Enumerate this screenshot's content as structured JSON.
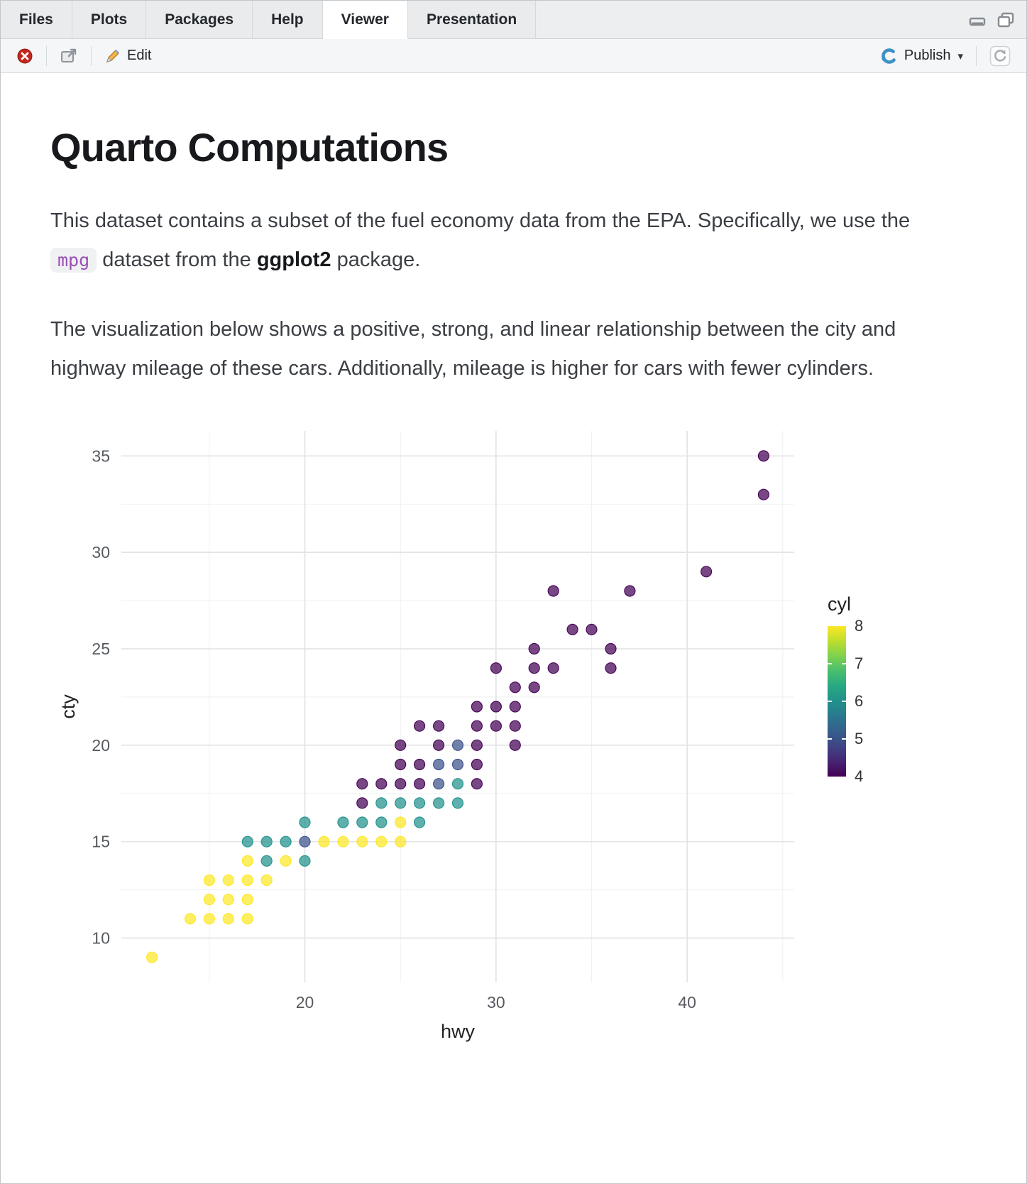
{
  "tabs": {
    "items": [
      "Files",
      "Plots",
      "Packages",
      "Help",
      "Viewer",
      "Presentation"
    ],
    "active": "Viewer",
    "active_index": 4
  },
  "toolbar": {
    "edit_label": "Edit",
    "publish_label": "Publish",
    "publish_caret": "▾"
  },
  "document": {
    "title": "Quarto Computations",
    "para1_pre": "This dataset contains a subset of the fuel economy data from the EPA. Specifically, we use the ",
    "para1_code": "mpg",
    "para1_mid": " dataset from the ",
    "para1_bold": "ggplot2",
    "para1_post": " package.",
    "para2": "The visualization below shows a positive, strong, and linear relationship between the city and highway mileage of these cars. Additionally, mileage is higher for cars with fewer cylinders."
  },
  "chart_data": {
    "type": "scatter",
    "xlabel": "hwy",
    "ylabel": "cty",
    "x_ticks": [
      20,
      30,
      40
    ],
    "y_ticks": [
      10,
      15,
      20,
      25,
      30,
      35
    ],
    "xlim": [
      10.4,
      45.6
    ],
    "ylim": [
      7.7,
      36.3
    ],
    "grid": true,
    "legend": {
      "title": "cyl",
      "ticks": [
        8,
        7,
        6,
        5,
        4
      ],
      "min": 4,
      "max": 8,
      "position": "right",
      "palette": "viridis"
    },
    "point_fields": [
      "hwy",
      "cty",
      "cyl"
    ],
    "points": [
      [
        12,
        9,
        8
      ],
      [
        14,
        11,
        8
      ],
      [
        15,
        11,
        8
      ],
      [
        16,
        11,
        8
      ],
      [
        17,
        11,
        8
      ],
      [
        15,
        12,
        8
      ],
      [
        16,
        12,
        8
      ],
      [
        17,
        12,
        8
      ],
      [
        15,
        13,
        8
      ],
      [
        16,
        13,
        8
      ],
      [
        17,
        13,
        8
      ],
      [
        18,
        13,
        8
      ],
      [
        17,
        14,
        8
      ],
      [
        18,
        14,
        6
      ],
      [
        19,
        14,
        8
      ],
      [
        20,
        14,
        6
      ],
      [
        17,
        15,
        6
      ],
      [
        18,
        15,
        6
      ],
      [
        19,
        15,
        6
      ],
      [
        20,
        15,
        5
      ],
      [
        21,
        15,
        8
      ],
      [
        22,
        15,
        8
      ],
      [
        23,
        15,
        8
      ],
      [
        24,
        15,
        8
      ],
      [
        25,
        15,
        8
      ],
      [
        20,
        16,
        6
      ],
      [
        22,
        16,
        6
      ],
      [
        23,
        16,
        6
      ],
      [
        24,
        16,
        6
      ],
      [
        25,
        16,
        8
      ],
      [
        26,
        16,
        6
      ],
      [
        23,
        17,
        4
      ],
      [
        24,
        17,
        6
      ],
      [
        25,
        17,
        6
      ],
      [
        26,
        17,
        6
      ],
      [
        27,
        17,
        6
      ],
      [
        28,
        17,
        6
      ],
      [
        23,
        18,
        4
      ],
      [
        24,
        18,
        4
      ],
      [
        25,
        18,
        4
      ],
      [
        26,
        18,
        4
      ],
      [
        27,
        18,
        5
      ],
      [
        28,
        18,
        6
      ],
      [
        29,
        18,
        4
      ],
      [
        25,
        19,
        4
      ],
      [
        26,
        19,
        4
      ],
      [
        27,
        19,
        5
      ],
      [
        28,
        19,
        5
      ],
      [
        29,
        19,
        4
      ],
      [
        25,
        20,
        4
      ],
      [
        27,
        20,
        4
      ],
      [
        28,
        20,
        5
      ],
      [
        29,
        20,
        4
      ],
      [
        31,
        20,
        4
      ],
      [
        26,
        21,
        4
      ],
      [
        27,
        21,
        4
      ],
      [
        29,
        21,
        4
      ],
      [
        30,
        21,
        4
      ],
      [
        31,
        21,
        4
      ],
      [
        29,
        22,
        4
      ],
      [
        30,
        22,
        4
      ],
      [
        31,
        22,
        4
      ],
      [
        31,
        23,
        4
      ],
      [
        32,
        23,
        4
      ],
      [
        30,
        24,
        4
      ],
      [
        32,
        24,
        4
      ],
      [
        33,
        24,
        4
      ],
      [
        36,
        24,
        4
      ],
      [
        32,
        25,
        4
      ],
      [
        36,
        25,
        4
      ],
      [
        34,
        26,
        4
      ],
      [
        35,
        26,
        4
      ],
      [
        33,
        28,
        4
      ],
      [
        37,
        28,
        4
      ],
      [
        41,
        29,
        4
      ],
      [
        44,
        33,
        4
      ],
      [
        44,
        35,
        4
      ]
    ]
  }
}
